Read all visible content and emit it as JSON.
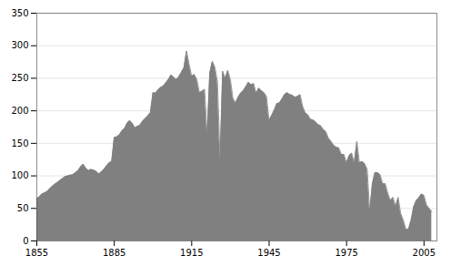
{
  "chart_data": {
    "type": "area",
    "x": [
      1855,
      1856,
      1857,
      1858,
      1859,
      1860,
      1861,
      1862,
      1863,
      1864,
      1865,
      1866,
      1867,
      1868,
      1869,
      1870,
      1871,
      1872,
      1873,
      1874,
      1875,
      1876,
      1877,
      1878,
      1879,
      1880,
      1881,
      1882,
      1883,
      1884,
      1885,
      1886,
      1887,
      1888,
      1889,
      1890,
      1891,
      1892,
      1893,
      1894,
      1895,
      1896,
      1897,
      1898,
      1899,
      1900,
      1901,
      1902,
      1903,
      1904,
      1905,
      1906,
      1907,
      1908,
      1909,
      1910,
      1911,
      1912,
      1913,
      1914,
      1915,
      1916,
      1917,
      1918,
      1919,
      1920,
      1921,
      1922,
      1923,
      1924,
      1925,
      1926,
      1927,
      1928,
      1929,
      1930,
      1931,
      1932,
      1933,
      1934,
      1935,
      1936,
      1937,
      1938,
      1939,
      1940,
      1941,
      1942,
      1943,
      1944,
      1945,
      1946,
      1947,
      1948,
      1949,
      1950,
      1951,
      1952,
      1953,
      1954,
      1955,
      1956,
      1957,
      1958,
      1959,
      1960,
      1961,
      1962,
      1963,
      1964,
      1965,
      1966,
      1967,
      1968,
      1969,
      1970,
      1971,
      1972,
      1973,
      1974,
      1975,
      1976,
      1977,
      1978,
      1979,
      1980,
      1981,
      1982,
      1983,
      1984,
      1985,
      1986,
      1987,
      1988,
      1989,
      1990,
      1991,
      1992,
      1993,
      1994,
      1995,
      1996,
      1997,
      1998,
      1999,
      2000,
      2001,
      2002,
      2003,
      2004,
      2005,
      2006,
      2007,
      2008
    ],
    "values": [
      65,
      68,
      72,
      74,
      76,
      80,
      84,
      87,
      90,
      93,
      96,
      99,
      100,
      101,
      102,
      105,
      108,
      114,
      118,
      112,
      108,
      110,
      109,
      107,
      103,
      106,
      110,
      115,
      120,
      122,
      159,
      160,
      163,
      169,
      173,
      181,
      185,
      181,
      174,
      176,
      178,
      184,
      188,
      192,
      197,
      228,
      227,
      232,
      236,
      238,
      243,
      248,
      255,
      252,
      248,
      252,
      259,
      266,
      292,
      272,
      253,
      256,
      248,
      228,
      230,
      233,
      163,
      258,
      276,
      267,
      244,
      125,
      261,
      250,
      262,
      248,
      219,
      212,
      221,
      227,
      231,
      237,
      244,
      240,
      242,
      227,
      235,
      231,
      228,
      222,
      185,
      193,
      201,
      211,
      212,
      218,
      225,
      228,
      225,
      224,
      221,
      222,
      225,
      207,
      197,
      194,
      187,
      186,
      183,
      179,
      177,
      171,
      168,
      158,
      153,
      147,
      144,
      143,
      133,
      133,
      120,
      131,
      135,
      120,
      153,
      120,
      122,
      119,
      110,
      45,
      88,
      105,
      105,
      102,
      88,
      88,
      73,
      62,
      67,
      53,
      67,
      42,
      32,
      18,
      18,
      32,
      52,
      62,
      66,
      72,
      70,
      55,
      50,
      45
    ],
    "color": "#808080",
    "xlim": [
      1855,
      2010
    ],
    "ylim": [
      0,
      350
    ],
    "xticks": [
      1855,
      1885,
      1915,
      1945,
      1975,
      2005
    ],
    "yticks": [
      0,
      50,
      100,
      150,
      200,
      250,
      300,
      350
    ],
    "grid": "y"
  }
}
